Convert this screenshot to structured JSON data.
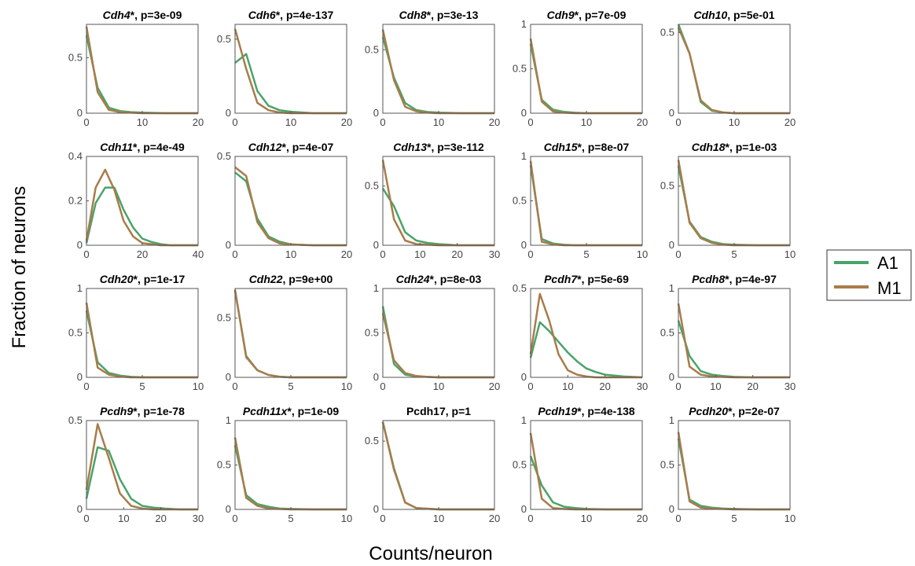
{
  "figure": {
    "ylabel": "Fraction of neurons",
    "xlabel": "Counts/neuron"
  },
  "legend": {
    "placement": "right",
    "items": [
      {
        "label": "A1",
        "color": "#4aa36a"
      },
      {
        "label": "M1",
        "color": "#a87c4a"
      }
    ]
  },
  "chart_data": [
    {
      "type": "line",
      "gene": "Cdh4",
      "starred": true,
      "pval": ", p=3e-09",
      "xlim": [
        0,
        20
      ],
      "ylim": [
        0,
        0.8
      ],
      "xticks": [
        "0",
        "10",
        "20"
      ],
      "yticks": [
        "0",
        "0.5"
      ],
      "x": [
        0,
        2,
        4,
        6,
        8,
        10,
        14,
        20
      ],
      "series": [
        {
          "name": "A1",
          "values": [
            0.7,
            0.23,
            0.05,
            0.02,
            0.01,
            0.005,
            0,
            0
          ]
        },
        {
          "name": "M1",
          "values": [
            0.78,
            0.19,
            0.03,
            0.01,
            0.005,
            0,
            0,
            0
          ]
        }
      ]
    },
    {
      "type": "line",
      "gene": "Cdh6",
      "starred": true,
      "pval": ", p=4e-137",
      "xlim": [
        0,
        20
      ],
      "ylim": [
        0,
        0.6
      ],
      "xticks": [
        "0",
        "10",
        "20"
      ],
      "yticks": [
        "0",
        "0.5"
      ],
      "x": [
        0,
        2,
        4,
        6,
        8,
        10,
        14,
        20
      ],
      "series": [
        {
          "name": "A1",
          "values": [
            0.34,
            0.4,
            0.15,
            0.05,
            0.02,
            0.01,
            0,
            0
          ]
        },
        {
          "name": "M1",
          "values": [
            0.57,
            0.3,
            0.07,
            0.02,
            0.005,
            0,
            0,
            0
          ]
        }
      ]
    },
    {
      "type": "line",
      "gene": "Cdh8",
      "starred": true,
      "pval": ", p=3e-13",
      "xlim": [
        0,
        20
      ],
      "ylim": [
        0,
        0.7
      ],
      "xticks": [
        "0",
        "10",
        "20"
      ],
      "yticks": [
        "0",
        "0.5"
      ],
      "x": [
        0,
        2,
        4,
        6,
        8,
        10,
        14,
        20
      ],
      "series": [
        {
          "name": "A1",
          "values": [
            0.6,
            0.28,
            0.08,
            0.025,
            0.01,
            0.005,
            0,
            0
          ]
        },
        {
          "name": "M1",
          "values": [
            0.66,
            0.26,
            0.05,
            0.015,
            0.005,
            0,
            0,
            0
          ]
        }
      ]
    },
    {
      "type": "line",
      "gene": "Cdh9",
      "starred": true,
      "pval": ", p=7e-09",
      "xlim": [
        0,
        20
      ],
      "ylim": [
        0,
        1
      ],
      "xticks": [
        "0",
        "10",
        "20"
      ],
      "yticks": [
        "0",
        "0.5",
        "1"
      ],
      "x": [
        0,
        2,
        4,
        6,
        8,
        10,
        14,
        20
      ],
      "series": [
        {
          "name": "A1",
          "values": [
            0.78,
            0.15,
            0.04,
            0.015,
            0.005,
            0,
            0,
            0
          ]
        },
        {
          "name": "M1",
          "values": [
            0.84,
            0.13,
            0.02,
            0.005,
            0,
            0,
            0,
            0
          ]
        }
      ]
    },
    {
      "type": "line",
      "gene": "Cdh10",
      "starred": false,
      "pval": ", p=5e-01",
      "xlim": [
        0,
        20
      ],
      "ylim": [
        0,
        0.55
      ],
      "xticks": [
        "0",
        "10",
        "20"
      ],
      "yticks": [
        "0",
        "0.5"
      ],
      "x": [
        0,
        2,
        4,
        6,
        8,
        10,
        14,
        20
      ],
      "series": [
        {
          "name": "A1",
          "values": [
            0.55,
            0.37,
            0.07,
            0.015,
            0.005,
            0,
            0,
            0
          ]
        },
        {
          "name": "M1",
          "values": [
            0.53,
            0.37,
            0.08,
            0.02,
            0.005,
            0,
            0,
            0
          ]
        }
      ]
    },
    {
      "type": "line",
      "gene": "Cdh11",
      "starred": true,
      "pval": ", p=4e-49",
      "xlim": [
        0,
        40
      ],
      "ylim": [
        0,
        0.4
      ],
      "xticks": [
        "0",
        "20",
        "40"
      ],
      "yticks": [
        "0",
        "0.2",
        "0.4"
      ],
      "x": [
        0,
        3.3,
        6.7,
        10,
        13.3,
        16.7,
        20,
        23.3,
        26.7,
        30,
        33.3,
        40
      ],
      "series": [
        {
          "name": "A1",
          "values": [
            0.01,
            0.19,
            0.26,
            0.26,
            0.16,
            0.08,
            0.03,
            0.015,
            0.005,
            0,
            0,
            0
          ]
        },
        {
          "name": "M1",
          "values": [
            0.02,
            0.26,
            0.34,
            0.25,
            0.11,
            0.04,
            0.01,
            0.005,
            0,
            0,
            0,
            0
          ]
        }
      ]
    },
    {
      "type": "line",
      "gene": "Cdh12",
      "starred": true,
      "pval": ", p=4e-07",
      "xlim": [
        0,
        20
      ],
      "ylim": [
        0,
        0.5
      ],
      "xticks": [
        "0",
        "10",
        "20"
      ],
      "yticks": [
        "0",
        "0.5"
      ],
      "x": [
        0,
        2,
        4,
        6,
        8,
        10,
        14,
        20
      ],
      "series": [
        {
          "name": "A1",
          "values": [
            0.41,
            0.36,
            0.15,
            0.05,
            0.02,
            0.005,
            0,
            0
          ]
        },
        {
          "name": "M1",
          "values": [
            0.44,
            0.39,
            0.13,
            0.04,
            0.01,
            0.005,
            0,
            0
          ]
        }
      ]
    },
    {
      "type": "line",
      "gene": "Cdh13",
      "starred": true,
      "pval": ", p=3e-112",
      "xlim": [
        0,
        30
      ],
      "ylim": [
        0,
        0.75
      ],
      "xticks": [
        "0",
        "10",
        "20",
        "30"
      ],
      "yticks": [
        "0",
        "0.5"
      ],
      "x": [
        0,
        3,
        6,
        9,
        12,
        15,
        20,
        30
      ],
      "series": [
        {
          "name": "A1",
          "values": [
            0.48,
            0.33,
            0.11,
            0.04,
            0.02,
            0.01,
            0,
            0
          ]
        },
        {
          "name": "M1",
          "values": [
            0.72,
            0.22,
            0.04,
            0.01,
            0.005,
            0,
            0,
            0
          ]
        }
      ]
    },
    {
      "type": "line",
      "gene": "Cdh15",
      "starred": true,
      "pval": ", p=8e-07",
      "xlim": [
        0,
        10
      ],
      "ylim": [
        0,
        1
      ],
      "xticks": [
        "0",
        "5",
        "10"
      ],
      "yticks": [
        "0",
        "0.5",
        "1"
      ],
      "x": [
        0,
        1,
        2,
        3,
        4,
        5,
        7,
        10
      ],
      "series": [
        {
          "name": "A1",
          "values": [
            0.9,
            0.07,
            0.02,
            0.005,
            0,
            0,
            0,
            0
          ]
        },
        {
          "name": "M1",
          "values": [
            0.95,
            0.04,
            0.01,
            0,
            0,
            0,
            0,
            0
          ]
        }
      ]
    },
    {
      "type": "line",
      "gene": "Cdh18",
      "starred": true,
      "pval": ", p=1e-03",
      "xlim": [
        0,
        10
      ],
      "ylim": [
        0,
        0.75
      ],
      "xticks": [
        "0",
        "5",
        "10"
      ],
      "yticks": [
        "0",
        "0.5"
      ],
      "x": [
        0,
        1,
        2,
        3,
        4,
        5,
        7,
        10
      ],
      "series": [
        {
          "name": "A1",
          "values": [
            0.67,
            0.2,
            0.07,
            0.03,
            0.01,
            0.005,
            0,
            0
          ]
        },
        {
          "name": "M1",
          "values": [
            0.72,
            0.19,
            0.06,
            0.02,
            0.005,
            0,
            0,
            0
          ]
        }
      ]
    },
    {
      "type": "line",
      "gene": "Cdh20",
      "starred": true,
      "pval": ", p=1e-17",
      "xlim": [
        0,
        10
      ],
      "ylim": [
        0,
        1
      ],
      "xticks": [
        "0",
        "5",
        "10"
      ],
      "yticks": [
        "0",
        "0.5",
        "1"
      ],
      "x": [
        0,
        1,
        2,
        3,
        4,
        5,
        7,
        10
      ],
      "series": [
        {
          "name": "A1",
          "values": [
            0.75,
            0.17,
            0.05,
            0.02,
            0.005,
            0,
            0,
            0
          ]
        },
        {
          "name": "M1",
          "values": [
            0.84,
            0.11,
            0.03,
            0.01,
            0,
            0,
            0,
            0
          ]
        }
      ]
    },
    {
      "type": "line",
      "gene": "Cdh22",
      "starred": false,
      "pval": ", p=9e+00",
      "xlim": [
        0,
        10
      ],
      "ylim": [
        0,
        0.75
      ],
      "xticks": [
        "0",
        "5",
        "10"
      ],
      "yticks": [
        "0",
        "0.5"
      ],
      "x": [
        0,
        1,
        2,
        3,
        4,
        5,
        7,
        10
      ],
      "series": [
        {
          "name": "A1",
          "values": [
            0.73,
            0.18,
            0.06,
            0.02,
            0.005,
            0,
            0,
            0
          ]
        },
        {
          "name": "M1",
          "values": [
            0.74,
            0.17,
            0.06,
            0.02,
            0.005,
            0,
            0,
            0
          ]
        }
      ]
    },
    {
      "type": "line",
      "gene": "Cdh24",
      "starred": true,
      "pval": ", p=8e-03",
      "xlim": [
        0,
        20
      ],
      "ylim": [
        0,
        1
      ],
      "xticks": [
        "0",
        "10",
        "20"
      ],
      "yticks": [
        "0",
        "0.5",
        "1"
      ],
      "x": [
        0,
        2,
        4,
        6,
        8,
        10,
        14,
        20
      ],
      "series": [
        {
          "name": "A1",
          "values": [
            0.8,
            0.15,
            0.03,
            0.01,
            0.005,
            0,
            0,
            0
          ]
        },
        {
          "name": "M1",
          "values": [
            0.72,
            0.19,
            0.05,
            0.015,
            0.005,
            0,
            0,
            0
          ]
        }
      ]
    },
    {
      "type": "line",
      "gene": "Pcdh7",
      "starred": true,
      "pval": ", p=5e-69",
      "xlim": [
        0,
        30
      ],
      "ylim": [
        0,
        0.5
      ],
      "xticks": [
        "0",
        "10",
        "20",
        "30"
      ],
      "yticks": [
        "0",
        "0.5"
      ],
      "x": [
        0,
        2.5,
        5,
        7.5,
        10,
        12.5,
        15,
        17.5,
        20,
        22.5,
        25,
        30
      ],
      "series": [
        {
          "name": "A1",
          "values": [
            0.11,
            0.31,
            0.26,
            0.2,
            0.14,
            0.09,
            0.05,
            0.03,
            0.015,
            0.01,
            0.005,
            0
          ]
        },
        {
          "name": "M1",
          "values": [
            0.13,
            0.47,
            0.32,
            0.13,
            0.04,
            0.015,
            0.005,
            0,
            0,
            0,
            0,
            0
          ]
        }
      ]
    },
    {
      "type": "line",
      "gene": "Pcdh8",
      "starred": true,
      "pval": ", p=4e-97",
      "xlim": [
        0,
        30
      ],
      "ylim": [
        0,
        1
      ],
      "xticks": [
        "0",
        "10",
        "20",
        "30"
      ],
      "yticks": [
        "0",
        "0.5",
        "1"
      ],
      "x": [
        0,
        3,
        6,
        9,
        12,
        15,
        20,
        30
      ],
      "series": [
        {
          "name": "A1",
          "values": [
            0.64,
            0.24,
            0.07,
            0.03,
            0.015,
            0.005,
            0,
            0
          ]
        },
        {
          "name": "M1",
          "values": [
            0.83,
            0.12,
            0.03,
            0.01,
            0.005,
            0,
            0,
            0
          ]
        }
      ]
    },
    {
      "type": "line",
      "gene": "Pcdh9",
      "starred": true,
      "pval": ", p=1e-78",
      "xlim": [
        0,
        30
      ],
      "ylim": [
        0,
        0.5
      ],
      "xticks": [
        "0",
        "10",
        "20",
        "30"
      ],
      "yticks": [
        "0",
        "0.5"
      ],
      "x": [
        0,
        3,
        6,
        9,
        12,
        15,
        18,
        21,
        25,
        30
      ],
      "series": [
        {
          "name": "A1",
          "values": [
            0.06,
            0.35,
            0.33,
            0.17,
            0.06,
            0.02,
            0.01,
            0.005,
            0,
            0
          ]
        },
        {
          "name": "M1",
          "values": [
            0.11,
            0.48,
            0.29,
            0.09,
            0.02,
            0.005,
            0,
            0,
            0,
            0
          ]
        }
      ]
    },
    {
      "type": "line",
      "gene": "Pcdh11x",
      "starred": true,
      "pval": ", p=1e-09",
      "xlim": [
        0,
        10
      ],
      "ylim": [
        0,
        1
      ],
      "xticks": [
        "0",
        "5",
        "10"
      ],
      "yticks": [
        "0",
        "0.5",
        "1"
      ],
      "x": [
        0,
        1,
        2,
        3,
        4,
        5,
        7,
        10
      ],
      "series": [
        {
          "name": "A1",
          "values": [
            0.72,
            0.16,
            0.06,
            0.03,
            0.01,
            0.005,
            0,
            0
          ]
        },
        {
          "name": "M1",
          "values": [
            0.81,
            0.13,
            0.04,
            0.01,
            0.005,
            0,
            0,
            0
          ]
        }
      ]
    },
    {
      "type": "line",
      "gene": "Pcdh17",
      "starred": false,
      "plain": true,
      "pval": "Pcdh17, p=1",
      "xlim": [
        0,
        20
      ],
      "ylim": [
        0,
        0.65
      ],
      "xticks": [
        "0",
        "10",
        "20"
      ],
      "yticks": [
        "0",
        "0.5"
      ],
      "x": [
        0,
        2,
        4,
        6,
        8,
        10,
        14,
        20
      ],
      "series": [
        {
          "name": "A1",
          "values": [
            0.64,
            0.3,
            0.05,
            0.01,
            0.005,
            0,
            0,
            0
          ]
        },
        {
          "name": "M1",
          "values": [
            0.64,
            0.29,
            0.05,
            0.01,
            0.005,
            0,
            0,
            0
          ]
        }
      ]
    },
    {
      "type": "line",
      "gene": "Pcdh19",
      "starred": true,
      "pval": ", p=4e-138",
      "xlim": [
        0,
        20
      ],
      "ylim": [
        0,
        1
      ],
      "xticks": [
        "0",
        "10",
        "20"
      ],
      "yticks": [
        "0",
        "0.5",
        "1"
      ],
      "x": [
        0,
        2,
        4,
        6,
        8,
        10,
        14,
        20
      ],
      "series": [
        {
          "name": "A1",
          "values": [
            0.6,
            0.27,
            0.08,
            0.03,
            0.015,
            0.005,
            0,
            0
          ]
        },
        {
          "name": "M1",
          "values": [
            0.86,
            0.12,
            0.015,
            0.005,
            0,
            0,
            0,
            0
          ]
        }
      ]
    },
    {
      "type": "line",
      "gene": "Pcdh20",
      "starred": true,
      "pval": ", p=2e-07",
      "xlim": [
        0,
        10
      ],
      "ylim": [
        0,
        1
      ],
      "xticks": [
        "0",
        "5",
        "10"
      ],
      "yticks": [
        "0",
        "0.5",
        "1"
      ],
      "x": [
        0,
        1,
        2,
        3,
        4,
        5,
        7,
        10
      ],
      "series": [
        {
          "name": "A1",
          "values": [
            0.8,
            0.11,
            0.04,
            0.02,
            0.01,
            0.005,
            0,
            0
          ]
        },
        {
          "name": "M1",
          "values": [
            0.87,
            0.09,
            0.02,
            0.01,
            0.005,
            0,
            0,
            0
          ]
        }
      ]
    }
  ]
}
